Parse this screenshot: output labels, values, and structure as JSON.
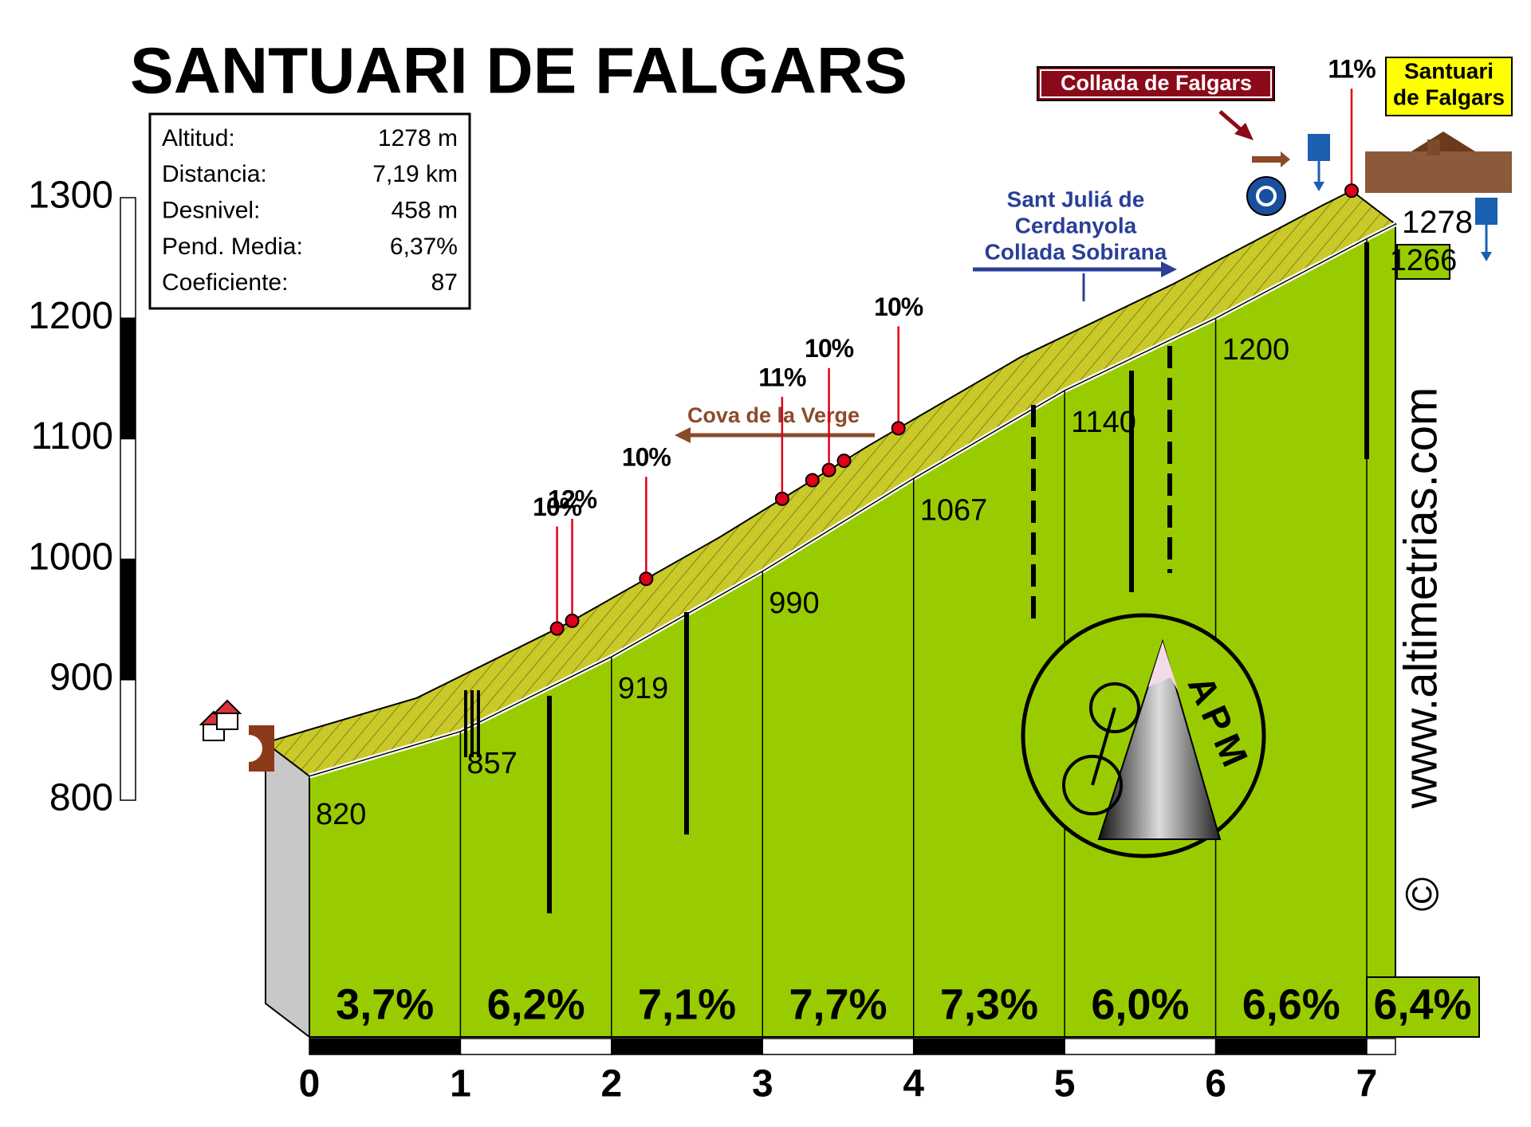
{
  "chart_data": {
    "type": "profile",
    "title": "SANTUARI DE FALGARS",
    "stats": [
      [
        "Altitud:",
        "1278 m"
      ],
      [
        "Distancia:",
        "7,19 km"
      ],
      [
        "Desnivel:",
        "458 m"
      ],
      [
        "Pend. Media:",
        "6,37%"
      ],
      [
        "Coeficiente:",
        "87"
      ]
    ],
    "x": [
      0,
      1,
      2,
      3,
      4,
      5,
      6,
      7,
      7.19
    ],
    "values": [
      820,
      857,
      919,
      990,
      1067,
      1140,
      1200,
      1266,
      1278
    ],
    "xlim": [
      0,
      7.19
    ],
    "xticks": [
      0,
      1,
      2,
      3,
      4,
      5,
      6,
      7
    ],
    "ylim": [
      800,
      1300
    ],
    "yticks": [
      800,
      900,
      1000,
      1100,
      1200,
      1300
    ],
    "color": "#99cc00",
    "gradients": {
      "values": [
        3.7,
        6.2,
        7.1,
        7.7,
        7.3,
        6.0,
        6.6,
        6.4
      ],
      "value_labels": [
        "3,7%",
        "6,2%",
        "7,1%",
        "7,7%",
        "7,3%",
        "6,0%",
        "6,6%",
        "6,4%"
      ]
    },
    "markers": {
      "x": [
        1.93,
        2.03,
        2.52,
        3.42,
        3.62,
        3.73,
        3.83,
        4.19,
        7.19
      ],
      "labels": [
        "10%",
        "12%",
        "10%",
        "11%",
        null,
        "10%",
        null,
        "10%",
        "11%"
      ]
    },
    "places": {
      "cova": "Cova de la Verge",
      "sant_julia": [
        "Sant Juliá de",
        "Cerdanyola",
        "Collada Sobirana"
      ],
      "collada": "Collada de Falgars",
      "santuari": [
        "Santuari",
        "de Falgars"
      ],
      "site": "www.altimetrias.com",
      "copyright": "©",
      "logo": "APM"
    }
  }
}
